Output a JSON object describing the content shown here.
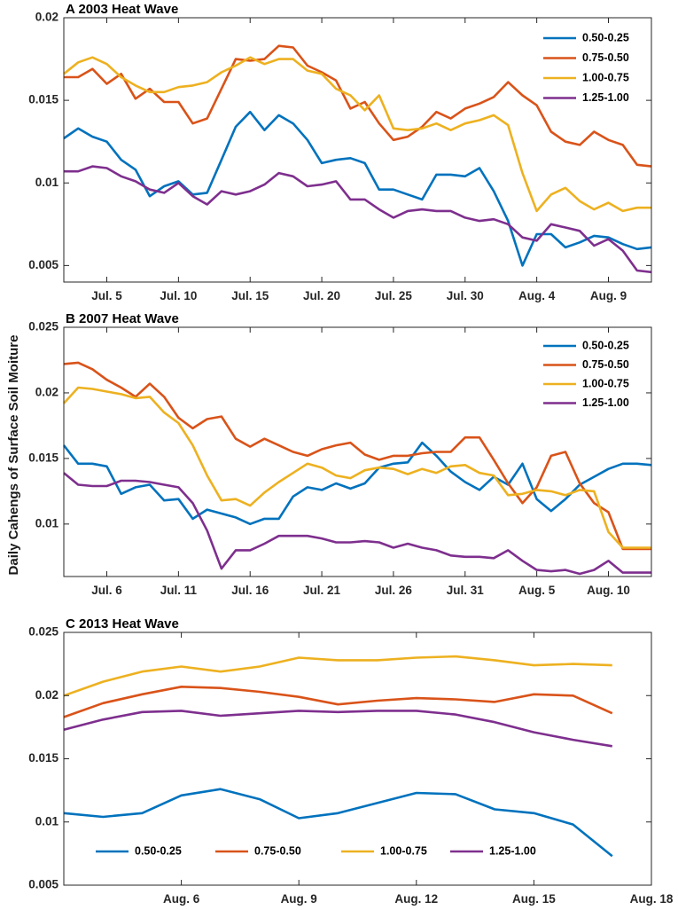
{
  "figure": {
    "ylabel": "Daily Cahengs of Surface Soil Moiture",
    "colors": {
      "0.50-0.25": "#0072bd",
      "0.75-0.50": "#d95319",
      "1.00-0.75": "#edb120",
      "1.25-1.00": "#7e2f8e"
    }
  },
  "chart_data": [
    {
      "type": "line",
      "panel": "A",
      "title": "2003 Heat Wave",
      "xlabel": "",
      "ylabel": "Daily Cahengs of Surface Soil Moiture",
      "xlim": [
        1,
        42
      ],
      "ylim": [
        0.004,
        0.02
      ],
      "yticks": [
        0.005,
        0.01,
        0.015,
        0.02
      ],
      "ytick_labels": [
        "0.005",
        "0.01",
        "0.015",
        "0.02"
      ],
      "xticks": [
        4,
        9,
        14,
        19,
        24,
        29,
        34,
        39
      ],
      "xtick_labels": [
        "Jul. 5",
        "Jul. 10",
        "Jul. 15",
        "Jul. 20",
        "Jul. 25",
        "Jul. 30",
        "Aug. 4",
        "Aug. 9"
      ],
      "legend_position": "top-right",
      "series": [
        {
          "name": "0.50-0.25",
          "values": [
            0.0127,
            0.0133,
            0.0128,
            0.0125,
            0.0114,
            0.0108,
            0.0092,
            0.0098,
            0.0101,
            0.0093,
            0.0094,
            0.0114,
            0.0134,
            0.0143,
            0.0132,
            0.0141,
            0.0136,
            0.0126,
            0.0112,
            0.0114,
            0.0115,
            0.0112,
            0.0096,
            0.0096,
            0.0093,
            0.009,
            0.0105,
            0.0105,
            0.0104,
            0.0109,
            0.0095,
            0.0077,
            0.005,
            0.0069,
            0.0069,
            0.0061,
            0.0064,
            0.0068,
            0.0067,
            0.0063,
            0.006,
            0.0061
          ]
        },
        {
          "name": "0.75-0.50",
          "values": [
            0.0164,
            0.0164,
            0.0169,
            0.016,
            0.0166,
            0.0151,
            0.0157,
            0.0149,
            0.0149,
            0.0136,
            0.0139,
            0.0157,
            0.0175,
            0.0174,
            0.0175,
            0.0183,
            0.0182,
            0.0171,
            0.0167,
            0.0162,
            0.0145,
            0.0149,
            0.0136,
            0.0126,
            0.0128,
            0.0134,
            0.0143,
            0.0139,
            0.0145,
            0.0148,
            0.0152,
            0.0161,
            0.0153,
            0.0147,
            0.0131,
            0.0125,
            0.0123,
            0.0131,
            0.0126,
            0.0123,
            0.0111,
            0.011
          ]
        },
        {
          "name": "1.00-0.75",
          "values": [
            0.0166,
            0.0173,
            0.0176,
            0.0172,
            0.0164,
            0.0159,
            0.0155,
            0.0155,
            0.0158,
            0.0159,
            0.0161,
            0.0167,
            0.0171,
            0.0176,
            0.0172,
            0.0175,
            0.0175,
            0.0168,
            0.0166,
            0.0157,
            0.0153,
            0.0144,
            0.0153,
            0.0133,
            0.0132,
            0.0133,
            0.0136,
            0.0132,
            0.0136,
            0.0138,
            0.0141,
            0.0135,
            0.0106,
            0.0083,
            0.0093,
            0.0097,
            0.0089,
            0.0084,
            0.0088,
            0.0083,
            0.0085,
            0.0085
          ]
        },
        {
          "name": "1.25-1.00",
          "values": [
            0.0107,
            0.0107,
            0.011,
            0.0109,
            0.0104,
            0.0101,
            0.0096,
            0.0094,
            0.01,
            0.0092,
            0.0087,
            0.0095,
            0.0093,
            0.0095,
            0.0099,
            0.0106,
            0.0104,
            0.0098,
            0.0099,
            0.0101,
            0.009,
            0.009,
            0.0084,
            0.0079,
            0.0083,
            0.0084,
            0.0083,
            0.0083,
            0.0079,
            0.0077,
            0.0078,
            0.0075,
            0.0067,
            0.0065,
            0.0075,
            0.0073,
            0.0071,
            0.0062,
            0.0066,
            0.0059,
            0.0047,
            0.0046
          ]
        }
      ]
    },
    {
      "type": "line",
      "panel": "B",
      "title": "2007 Heat Wave",
      "xlabel": "",
      "ylabel": "Daily Cahengs of Surface Soil Moiture",
      "xlim": [
        1,
        42
      ],
      "ylim": [
        0.006,
        0.025
      ],
      "yticks": [
        0.01,
        0.015,
        0.02,
        0.025
      ],
      "ytick_labels": [
        "0.01",
        "0.015",
        "0.02",
        "0.025"
      ],
      "xticks": [
        4,
        9,
        14,
        19,
        24,
        29,
        34,
        39
      ],
      "xtick_labels": [
        "Jul. 6",
        "Jul. 11",
        "Jul. 16",
        "Jul. 21",
        "Jul. 26",
        "Jul. 31",
        "Aug. 5",
        "Aug. 10"
      ],
      "legend_position": "top-right",
      "series": [
        {
          "name": "0.50-0.25",
          "values": [
            0.016,
            0.0146,
            0.0146,
            0.0144,
            0.0123,
            0.0128,
            0.013,
            0.0118,
            0.0119,
            0.0104,
            0.0111,
            0.0108,
            0.0105,
            0.01,
            0.0104,
            0.0104,
            0.0121,
            0.0128,
            0.0126,
            0.0131,
            0.0127,
            0.0131,
            0.0143,
            0.0146,
            0.0147,
            0.0162,
            0.0152,
            0.014,
            0.0132,
            0.0126,
            0.0136,
            0.013,
            0.0146,
            0.0119,
            0.011,
            0.0119,
            0.013,
            0.0136,
            0.0142,
            0.0146,
            0.0146,
            0.0145
          ]
        },
        {
          "name": "0.75-0.50",
          "values": [
            0.0222,
            0.0223,
            0.0218,
            0.021,
            0.0204,
            0.0197,
            0.0207,
            0.0197,
            0.0181,
            0.0173,
            0.018,
            0.0182,
            0.0165,
            0.0159,
            0.0165,
            0.016,
            0.0155,
            0.0152,
            0.0157,
            0.016,
            0.0162,
            0.0153,
            0.0149,
            0.0152,
            0.0152,
            0.0154,
            0.0155,
            0.0155,
            0.0166,
            0.0166,
            0.0149,
            0.0131,
            0.0116,
            0.0128,
            0.0152,
            0.0155,
            0.0131,
            0.0116,
            0.0109,
            0.0081,
            0.0081,
            0.0081
          ]
        },
        {
          "name": "1.00-0.75",
          "values": [
            0.0192,
            0.0204,
            0.0203,
            0.0201,
            0.0199,
            0.0196,
            0.0197,
            0.0185,
            0.0177,
            0.016,
            0.0137,
            0.0118,
            0.0119,
            0.0114,
            0.0124,
            0.0132,
            0.0139,
            0.0146,
            0.0143,
            0.0137,
            0.0135,
            0.0141,
            0.0143,
            0.0142,
            0.0138,
            0.0142,
            0.0139,
            0.0144,
            0.0145,
            0.0139,
            0.0137,
            0.0122,
            0.0123,
            0.0126,
            0.0125,
            0.0122,
            0.0126,
            0.0125,
            0.0094,
            0.0082,
            0.0082,
            0.0082
          ]
        },
        {
          "name": "1.25-1.00",
          "values": [
            0.0139,
            0.013,
            0.0129,
            0.0129,
            0.0133,
            0.0133,
            0.0132,
            0.013,
            0.0128,
            0.0116,
            0.0095,
            0.0066,
            0.008,
            0.008,
            0.0085,
            0.0091,
            0.0091,
            0.0091,
            0.0089,
            0.0086,
            0.0086,
            0.0087,
            0.0086,
            0.0082,
            0.0085,
            0.0082,
            0.008,
            0.0076,
            0.0075,
            0.0075,
            0.0074,
            0.008,
            0.0072,
            0.0065,
            0.0064,
            0.0065,
            0.0062,
            0.0065,
            0.0072,
            0.0063,
            0.0063,
            0.0063
          ]
        }
      ]
    },
    {
      "type": "line",
      "panel": "C",
      "title": "2013 Heat Wave",
      "xlabel": "",
      "ylabel": "Daily Cahengs of Surface Soil Moiture",
      "xlim": [
        1,
        16
      ],
      "ylim": [
        0.005,
        0.025
      ],
      "yticks": [
        0.005,
        0.01,
        0.015,
        0.02,
        0.025
      ],
      "ytick_labels": [
        "0.005",
        "0.01",
        "0.015",
        "0.02",
        "0.025"
      ],
      "xticks": [
        4,
        7,
        10,
        13,
        16
      ],
      "xtick_labels": [
        "Aug. 6",
        "Aug. 9",
        "Aug. 12",
        "Aug. 15",
        "Aug. 18"
      ],
      "legend_position": "bottom",
      "series": [
        {
          "name": "0.50-0.25",
          "values": [
            0.0107,
            0.0104,
            0.0107,
            0.0121,
            0.0126,
            0.0118,
            0.0103,
            0.0107,
            0.0115,
            0.0123,
            0.0122,
            0.011,
            0.0107,
            0.0098,
            0.0073
          ]
        },
        {
          "name": "0.75-0.50",
          "values": [
            0.0183,
            0.0194,
            0.0201,
            0.0207,
            0.0206,
            0.0203,
            0.0199,
            0.0193,
            0.0196,
            0.0198,
            0.0197,
            0.0195,
            0.0201,
            0.02,
            0.0186
          ]
        },
        {
          "name": "1.00-0.75",
          "values": [
            0.02,
            0.0211,
            0.0219,
            0.0223,
            0.0219,
            0.0223,
            0.023,
            0.0228,
            0.0228,
            0.023,
            0.0231,
            0.0228,
            0.0224,
            0.0225,
            0.0224
          ]
        },
        {
          "name": "1.25-1.00",
          "values": [
            0.0173,
            0.0181,
            0.0187,
            0.0188,
            0.0184,
            0.0186,
            0.0188,
            0.0187,
            0.0188,
            0.0188,
            0.0185,
            0.0179,
            0.0171,
            0.0165,
            0.016
          ]
        }
      ]
    }
  ]
}
